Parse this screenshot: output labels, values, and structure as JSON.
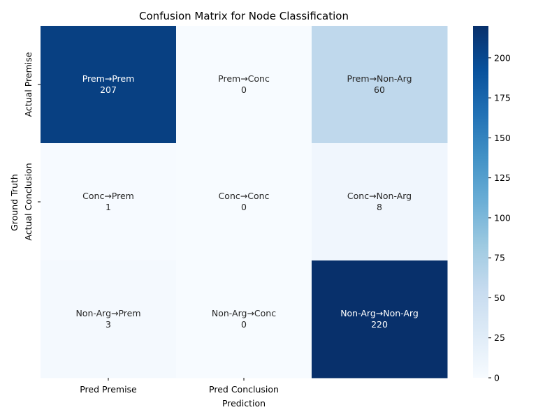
{
  "chart_data": {
    "type": "heatmap",
    "title": "Confusion Matrix for Node Classification",
    "xlabel": "Prediction",
    "ylabel": "Ground Truth",
    "x_tick_labels": [
      "Pred Premise",
      "Pred Conclusion",
      ""
    ],
    "y_tick_labels": [
      "Actual Premise",
      "Actual Conclusion",
      ""
    ],
    "cells": [
      [
        {
          "label": "Prem→Prem",
          "value": 207
        },
        {
          "label": "Prem→Conc",
          "value": 0
        },
        {
          "label": "Prem→Non-Arg",
          "value": 60
        }
      ],
      [
        {
          "label": "Conc→Prem",
          "value": 1
        },
        {
          "label": "Conc→Conc",
          "value": 0
        },
        {
          "label": "Conc→Non-Arg",
          "value": 8
        }
      ],
      [
        {
          "label": "Non-Arg→Prem",
          "value": 3
        },
        {
          "label": "Non-Arg→Conc",
          "value": 0
        },
        {
          "label": "Non-Arg→Non-Arg",
          "value": 220
        }
      ]
    ],
    "colorbar": {
      "vmin": 0,
      "vmax": 220,
      "ticks": [
        0,
        25,
        50,
        75,
        100,
        125,
        150,
        175,
        200
      ],
      "colormap": "Blues",
      "low_color": "#f7fbff",
      "high_color": "#08306b"
    }
  }
}
